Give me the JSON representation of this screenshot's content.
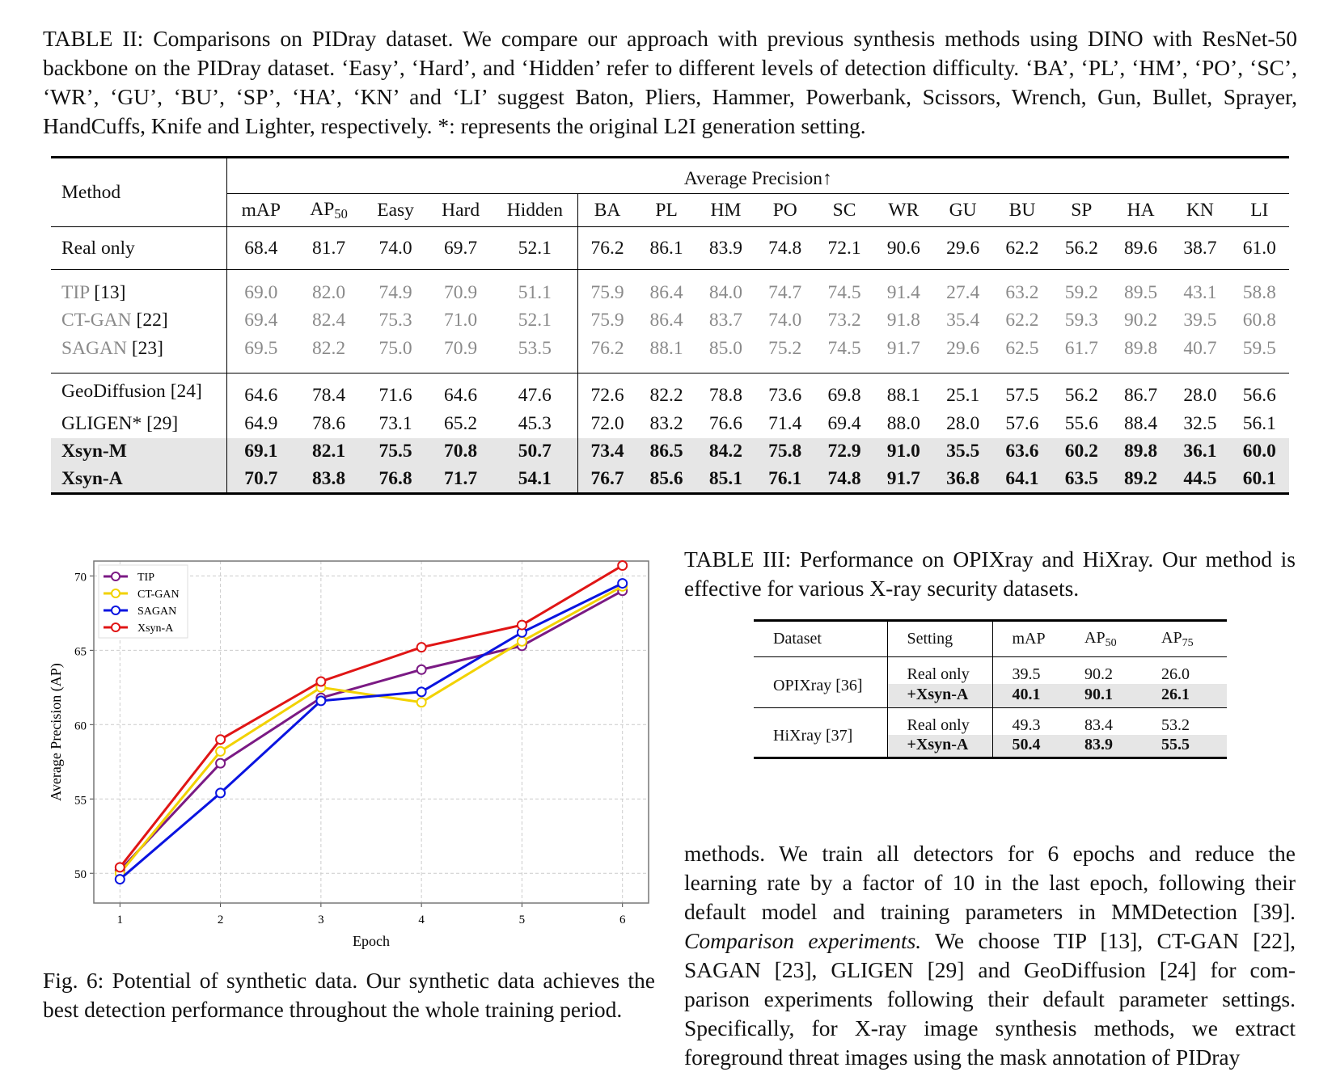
{
  "table2": {
    "caption": "TABLE II: Comparisons on PIDray dataset. We compare our approach with previous synthesis methods using DINO with ResNet-50 backbone on the PIDray dataset. ‘Easy’, ‘Hard’, and ‘Hidden’ refer to different levels of detection difficulty. ‘BA’, ‘PL’, ‘HM’, ‘PO’, ‘SC’, ‘WR’, ‘GU’, ‘BU’, ‘SP’, ‘HA’, ‘KN’ and ‘LI’ suggest Baton, Pliers, Hammer, Powerbank, Scissors, Wrench, Gun, Bullet, Sprayer, HandCuffs, Knife and Lighter, respectively. *: represents the original L2I generation setting.",
    "method_header": "Method",
    "group_header": "Average Precision↑",
    "columns": [
      "mAP",
      "AP50",
      "Easy",
      "Hard",
      "Hidden",
      "BA",
      "PL",
      "HM",
      "PO",
      "SC",
      "WR",
      "GU",
      "BU",
      "SP",
      "HA",
      "KN",
      "LI"
    ],
    "rows": [
      {
        "method": "Real only",
        "ref": "",
        "style": "normal",
        "values": [
          "68.4",
          "81.7",
          "74.0",
          "69.7",
          "52.1",
          "76.2",
          "86.1",
          "83.9",
          "74.8",
          "72.1",
          "90.6",
          "29.6",
          "62.2",
          "56.2",
          "89.6",
          "38.7",
          "61.0"
        ]
      },
      {
        "method": "TIP",
        "ref": "[13]",
        "style": "gray",
        "values": [
          "69.0",
          "82.0",
          "74.9",
          "70.9",
          "51.1",
          "75.9",
          "86.4",
          "84.0",
          "74.7",
          "74.5",
          "91.4",
          "27.4",
          "63.2",
          "59.2",
          "89.5",
          "43.1",
          "58.8"
        ]
      },
      {
        "method": "CT-GAN",
        "ref": "[22]",
        "style": "gray",
        "values": [
          "69.4",
          "82.4",
          "75.3",
          "71.0",
          "52.1",
          "75.9",
          "86.4",
          "83.7",
          "74.0",
          "73.2",
          "91.8",
          "35.4",
          "62.2",
          "59.3",
          "90.2",
          "39.5",
          "60.8"
        ]
      },
      {
        "method": "SAGAN",
        "ref": "[23]",
        "style": "gray",
        "values": [
          "69.5",
          "82.2",
          "75.0",
          "70.9",
          "53.5",
          "76.2",
          "88.1",
          "85.0",
          "75.2",
          "74.5",
          "91.7",
          "29.6",
          "62.5",
          "61.7",
          "89.8",
          "40.7",
          "59.5"
        ]
      },
      {
        "method": "GeoDiffusion",
        "ref": "[24]",
        "style": "normal",
        "values": [
          "64.6",
          "78.4",
          "71.6",
          "64.6",
          "47.6",
          "72.6",
          "82.2",
          "78.8",
          "73.6",
          "69.8",
          "88.1",
          "25.1",
          "57.5",
          "56.2",
          "86.7",
          "28.0",
          "56.6"
        ]
      },
      {
        "method": "GLIGEN*",
        "ref": "[29]",
        "style": "normal",
        "values": [
          "64.9",
          "78.6",
          "73.1",
          "65.2",
          "45.3",
          "72.0",
          "83.2",
          "76.6",
          "71.4",
          "69.4",
          "88.0",
          "28.0",
          "57.6",
          "55.6",
          "88.4",
          "32.5",
          "56.1"
        ]
      },
      {
        "method": "Xsyn-M",
        "ref": "",
        "style": "bold",
        "values": [
          "69.1",
          "82.1",
          "75.5",
          "70.8",
          "50.7",
          "73.4",
          "86.5",
          "84.2",
          "75.8",
          "72.9",
          "91.0",
          "35.5",
          "63.6",
          "60.2",
          "89.8",
          "36.1",
          "60.0"
        ]
      },
      {
        "method": "Xsyn-A",
        "ref": "",
        "style": "bold",
        "values": [
          "70.7",
          "83.8",
          "76.8",
          "71.7",
          "54.1",
          "76.7",
          "85.6",
          "85.1",
          "76.1",
          "74.8",
          "91.7",
          "36.8",
          "64.1",
          "63.5",
          "89.2",
          "44.5",
          "60.1"
        ]
      }
    ]
  },
  "table3": {
    "caption": "TABLE III: Performance on OPIXray and HiXray. Our method is effective for various X-ray security datasets.",
    "headers": [
      "Dataset",
      "Setting",
      "mAP",
      "AP50",
      "AP75"
    ],
    "groups": [
      {
        "dataset": "OPIXray [36]",
        "rows": [
          {
            "setting": "Real only",
            "values": [
              "39.5",
              "90.2",
              "26.0"
            ]
          },
          {
            "setting": "+Xsyn-A",
            "values": [
              "40.1",
              "90.1",
              "26.1"
            ]
          }
        ]
      },
      {
        "dataset": "HiXray [37]",
        "rows": [
          {
            "setting": "Real only",
            "values": [
              "49.3",
              "83.4",
              "53.2"
            ]
          },
          {
            "setting": "+Xsyn-A",
            "values": [
              "50.4",
              "83.9",
              "55.5"
            ]
          }
        ]
      }
    ]
  },
  "figure": {
    "caption": "Fig. 6: Potential of synthetic data. Our synthetic data achieves the best detection performance throughout the whole training period."
  },
  "chart_data": {
    "type": "line",
    "xlabel": "Epoch",
    "ylabel": "Average Precision (AP)",
    "x": [
      1,
      2,
      3,
      4,
      5,
      6
    ],
    "xlim": [
      0.74,
      6.26
    ],
    "ylim": [
      48,
      71
    ],
    "xticks": [
      "1",
      "2",
      "3",
      "4",
      "5",
      "6"
    ],
    "yticks": [
      "50",
      "55",
      "60",
      "65",
      "70"
    ],
    "grid": true,
    "legend": "top-left",
    "series": [
      {
        "name": "TIP",
        "color": "#7b1a84",
        "values": [
          50.2,
          57.4,
          61.8,
          63.7,
          65.3,
          69.0
        ]
      },
      {
        "name": "CT-GAN",
        "color": "#f2d200",
        "values": [
          50.0,
          58.2,
          62.5,
          61.5,
          65.6,
          69.3
        ]
      },
      {
        "name": "SAGAN",
        "color": "#0a14e0",
        "values": [
          49.6,
          55.4,
          61.6,
          62.2,
          66.2,
          69.5
        ]
      },
      {
        "name": "Xsyn-A",
        "color": "#e01515",
        "values": [
          50.4,
          59.0,
          62.9,
          65.2,
          66.7,
          70.7
        ]
      }
    ]
  },
  "body": {
    "lines": [
      "methods. We train all detectors for 6 epochs and reduce the",
      "learning rate by a factor of 10 in the last epoch, following their",
      "default model and training parameters in MMDetection [39].",
      "Comparison experiments. We choose TIP [13], CT-GAN [22],",
      "SAGAN [23], GLIGEN [29] and GeoDiffusion [24] for com-",
      "parison experiments following their default parameter settings.",
      "Specifically, for X-ray image synthesis methods, we extract",
      "foreground threat images using the mask annotation of PIDray"
    ],
    "italic_lead": "Comparison experiments."
  }
}
